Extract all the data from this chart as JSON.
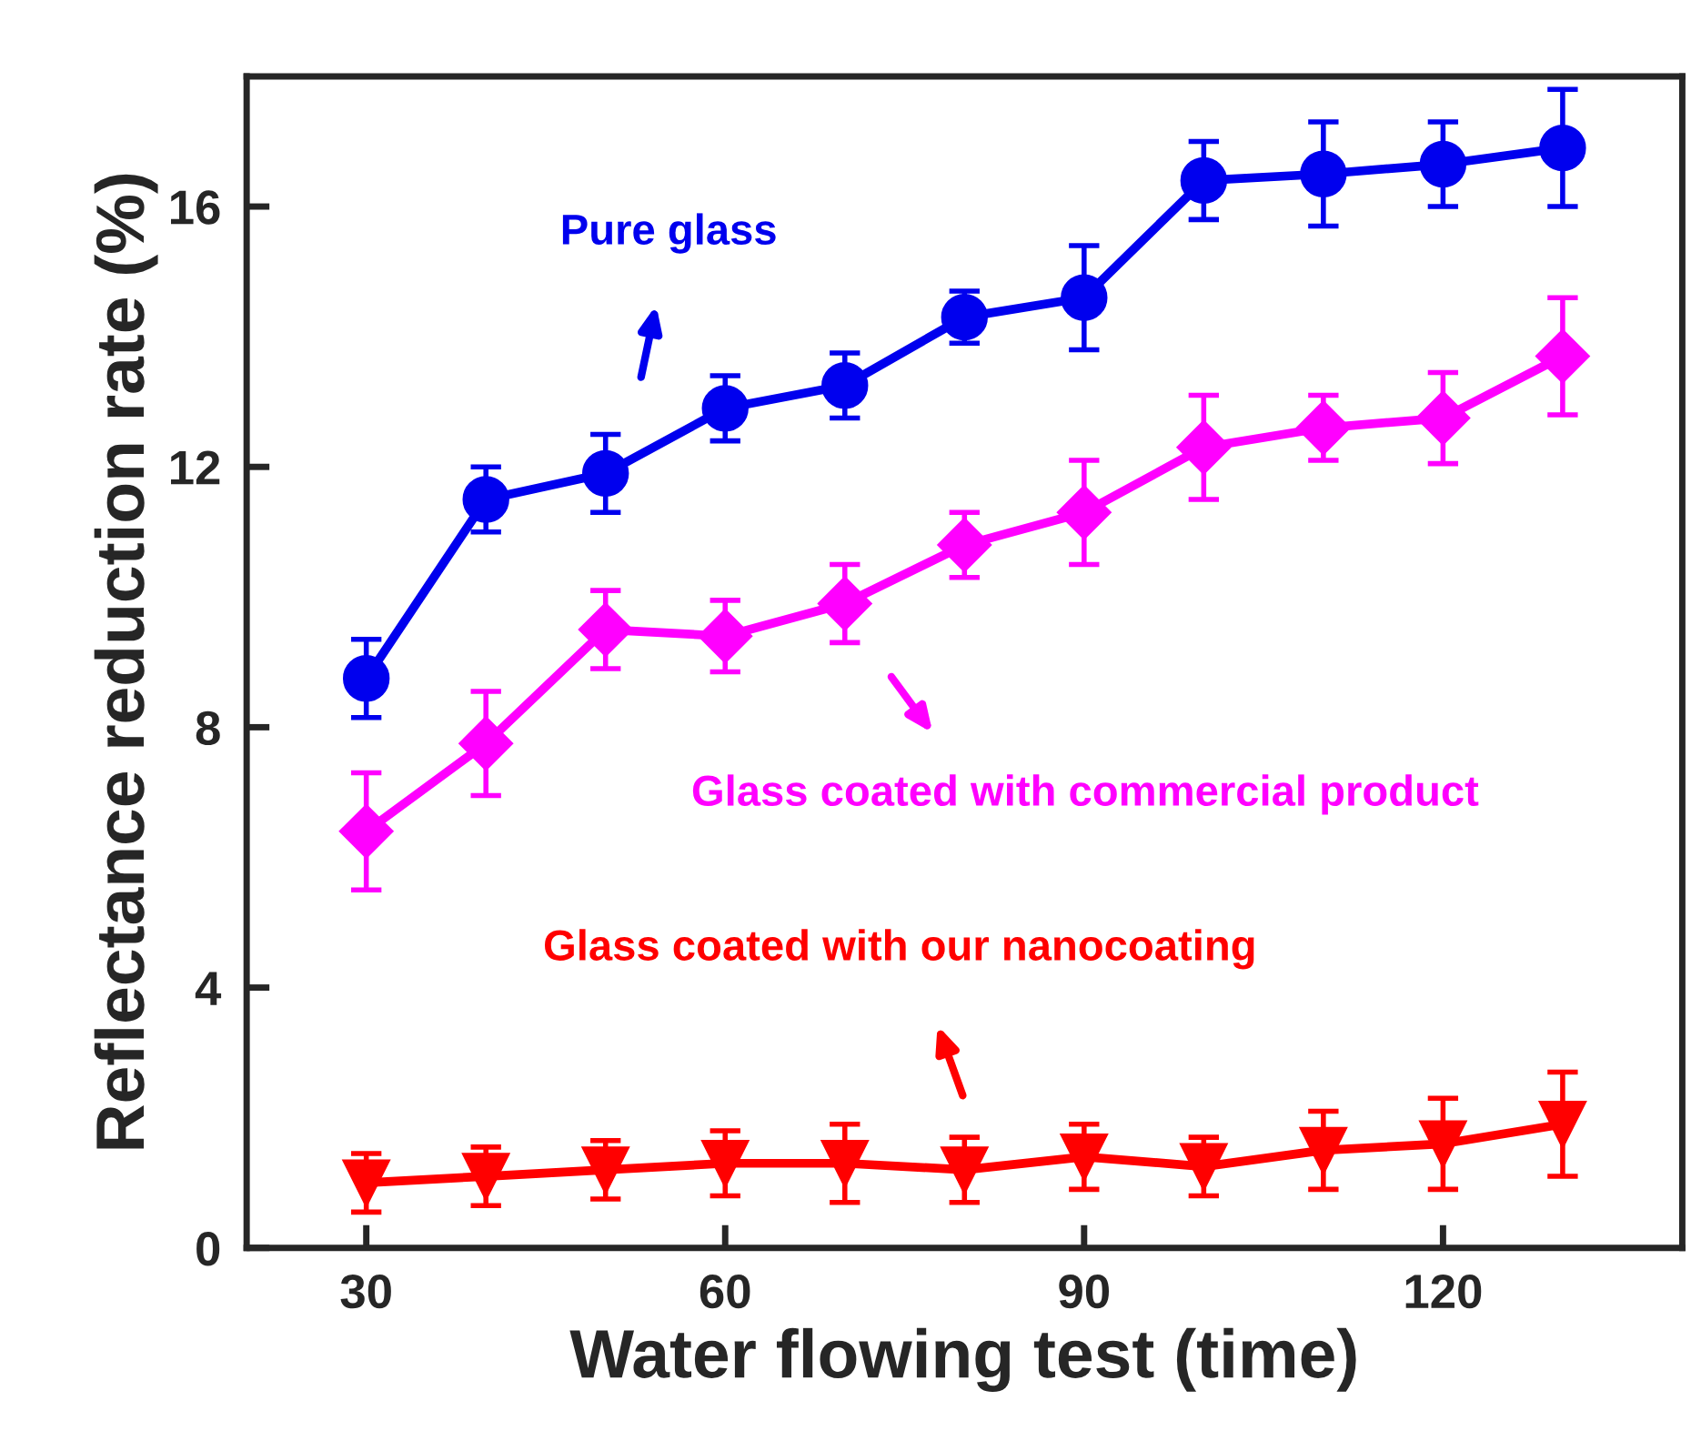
{
  "chart_data": {
    "type": "line",
    "xlabel": "Water flowing test (time)",
    "ylabel": "Reflectance reduction rate (%)",
    "x": [
      30,
      40,
      50,
      60,
      70,
      80,
      90,
      100,
      110,
      120,
      130
    ],
    "xlim": [
      20,
      140
    ],
    "xticks": [
      30,
      60,
      90,
      120
    ],
    "ylim": [
      0,
      18
    ],
    "yticks": [
      0,
      4,
      8,
      12,
      16
    ],
    "grid": false,
    "legend": false,
    "line_style": "solid",
    "series": [
      {
        "color": "#0000ee",
        "marker": "circle",
        "values": [
          8.75,
          11.5,
          11.9,
          12.9,
          13.25,
          14.3,
          14.6,
          16.4,
          16.5,
          16.65,
          16.9
        ],
        "errors": [
          0.6,
          0.5,
          0.6,
          0.5,
          0.5,
          0.4,
          0.8,
          0.6,
          0.8,
          0.65,
          0.9
        ]
      },
      {
        "color": "#ff00ff",
        "marker": "diamond",
        "values": [
          6.4,
          7.75,
          9.5,
          9.4,
          9.9,
          10.8,
          11.3,
          12.3,
          12.6,
          12.75,
          13.7
        ],
        "errors": [
          0.9,
          0.8,
          0.6,
          0.55,
          0.6,
          0.5,
          0.8,
          0.8,
          0.5,
          0.7,
          0.9
        ]
      },
      {
        "color": "#ff0000",
        "marker": "triangle",
        "values": [
          1.0,
          1.1,
          1.2,
          1.3,
          1.3,
          1.2,
          1.4,
          1.25,
          1.5,
          1.6,
          1.9
        ],
        "errors": [
          0.45,
          0.45,
          0.45,
          0.5,
          0.6,
          0.5,
          0.5,
          0.45,
          0.6,
          0.7,
          0.8
        ]
      }
    ],
    "annotations": [
      "Pure glass",
      "Glass coated with commercial product",
      "Glass coated with our nanocoating"
    ]
  }
}
